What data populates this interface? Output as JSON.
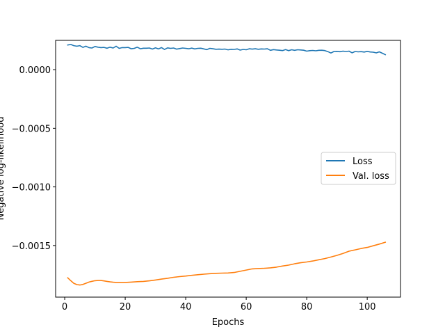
{
  "chart_data": {
    "type": "line",
    "title": "",
    "xlabel": "Epochs",
    "ylabel": "Negative log-likelihood",
    "xlim": [
      -3,
      111
    ],
    "ylim": [
      -0.00194,
      0.00025
    ],
    "xticks": [
      0,
      20,
      40,
      60,
      80,
      100
    ],
    "xtick_labels": [
      "0",
      "20",
      "40",
      "60",
      "80",
      "100"
    ],
    "yticks": [
      0.0,
      -0.0005,
      -0.001,
      -0.0015
    ],
    "ytick_labels": [
      "0.0000",
      "−0.0005",
      "−0.0010",
      "−0.0015"
    ],
    "grid": false,
    "legend_position": "center-right",
    "series": [
      {
        "name": "Loss",
        "color": "#1f77b4",
        "x": [
          1,
          2,
          3,
          4,
          5,
          6,
          7,
          8,
          9,
          10,
          11,
          12,
          13,
          14,
          15,
          16,
          17,
          18,
          19,
          20,
          21,
          22,
          23,
          24,
          25,
          26,
          27,
          28,
          29,
          30,
          31,
          32,
          33,
          34,
          35,
          36,
          37,
          38,
          39,
          40,
          41,
          42,
          43,
          44,
          45,
          46,
          47,
          48,
          49,
          50,
          51,
          52,
          53,
          54,
          55,
          56,
          57,
          58,
          59,
          60,
          61,
          62,
          63,
          64,
          65,
          66,
          67,
          68,
          69,
          70,
          71,
          72,
          73,
          74,
          75,
          76,
          77,
          78,
          79,
          80,
          81,
          82,
          83,
          84,
          85,
          86,
          87,
          88,
          89,
          90,
          91,
          92,
          93,
          94,
          95,
          96,
          97,
          98,
          99,
          100,
          101,
          102,
          103,
          104,
          105,
          106
        ],
        "y": [
          0.00021,
          0.000215,
          0.000205,
          0.0002,
          0.000205,
          0.00019,
          0.0002,
          0.000188,
          0.000185,
          0.000198,
          0.000192,
          0.000188,
          0.00019,
          0.000183,
          0.000192,
          0.000185,
          0.0002,
          0.000182,
          0.000188,
          0.000188,
          0.00019,
          0.000178,
          0.000182,
          0.000192,
          0.000178,
          0.000183,
          0.000183,
          0.000185,
          0.000176,
          0.000186,
          0.000177,
          0.000188,
          0.000172,
          0.000186,
          0.000182,
          0.000185,
          0.000175,
          0.00018,
          0.000185,
          0.000182,
          0.000178,
          0.000184,
          0.000177,
          0.000182,
          0.000183,
          0.000177,
          0.000171,
          0.000182,
          0.000178,
          0.000174,
          0.000175,
          0.000174,
          0.000176,
          0.000169,
          0.000174,
          0.000173,
          0.000177,
          0.000167,
          0.000173,
          0.00017,
          0.000178,
          0.000175,
          0.000178,
          0.000174,
          0.000177,
          0.000176,
          0.000178,
          0.000165,
          0.000171,
          0.000168,
          0.000166,
          0.000163,
          0.000171,
          0.000162,
          0.00017,
          0.000165,
          0.00017,
          0.000168,
          0.000166,
          0.000158,
          0.000162,
          0.000164,
          0.000161,
          0.000165,
          0.000166,
          0.000163,
          0.000154,
          0.000142,
          0.000155,
          0.000156,
          0.000153,
          0.000158,
          0.000155,
          0.000158,
          0.000144,
          0.000155,
          0.000152,
          0.000154,
          0.00015,
          0.000156,
          0.000151,
          0.000149,
          0.000143,
          0.000152,
          0.00014,
          0.000128
        ]
      },
      {
        "name": "Val. loss",
        "color": "#ff7f0e",
        "x": [
          1,
          2,
          3,
          4,
          5,
          6,
          7,
          8,
          9,
          10,
          11,
          12,
          13,
          14,
          15,
          16,
          17,
          18,
          19,
          20,
          22,
          24,
          26,
          28,
          30,
          32,
          34,
          36,
          38,
          40,
          42,
          44,
          46,
          48,
          50,
          52,
          54,
          56,
          58,
          60,
          62,
          64,
          66,
          68,
          70,
          72,
          74,
          76,
          78,
          80,
          82,
          84,
          86,
          88,
          90,
          92,
          94,
          96,
          98,
          100,
          102,
          104,
          106
        ],
        "y": [
          -0.001775,
          -0.0018,
          -0.001822,
          -0.001833,
          -0.001837,
          -0.001832,
          -0.001822,
          -0.001812,
          -0.001805,
          -0.0018,
          -0.001798,
          -0.001798,
          -0.001802,
          -0.001806,
          -0.00181,
          -0.001813,
          -0.001815,
          -0.001815,
          -0.001816,
          -0.001815,
          -0.001812,
          -0.001808,
          -0.001806,
          -0.001801,
          -0.001794,
          -0.001786,
          -0.001779,
          -0.001771,
          -0.001765,
          -0.00176,
          -0.001754,
          -0.001749,
          -0.001744,
          -0.00174,
          -0.001737,
          -0.001735,
          -0.001734,
          -0.00173,
          -0.00172,
          -0.001709,
          -0.001699,
          -0.001696,
          -0.001694,
          -0.00169,
          -0.001684,
          -0.001675,
          -0.001667,
          -0.001656,
          -0.001647,
          -0.00164,
          -0.001632,
          -0.001621,
          -0.001611,
          -0.001598,
          -0.001584,
          -0.001567,
          -0.001548,
          -0.001537,
          -0.001525,
          -0.001516,
          -0.001502,
          -0.001488,
          -0.001472
        ]
      }
    ]
  }
}
